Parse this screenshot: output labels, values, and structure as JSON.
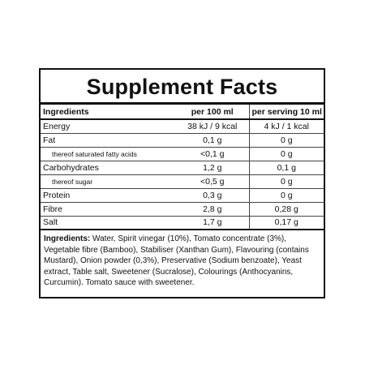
{
  "title": "Supplement Facts",
  "table": {
    "headers": [
      "Ingredients",
      "per 100 ml",
      "per serving 10 ml"
    ],
    "rows": [
      {
        "name": "Energy",
        "per100": "38 kJ / 9 kcal",
        "perServing": "4 kJ / 1 kcal",
        "sub": false
      },
      {
        "name": "Fat",
        "per100": "0,1 g",
        "perServing": "0 g",
        "sub": false
      },
      {
        "name": "thereof saturated fatty acids",
        "per100": "<0,1 g",
        "perServing": "0 g",
        "sub": true
      },
      {
        "name": "Carbohydrates",
        "per100": "1,2 g",
        "perServing": "0,1 g",
        "sub": false
      },
      {
        "name": "thereof sugar",
        "per100": "<0,5 g",
        "perServing": "0 g",
        "sub": true
      },
      {
        "name": "Protein",
        "per100": "0,3 g",
        "perServing": "0 g",
        "sub": false
      },
      {
        "name": "Fibre",
        "per100": "2,8 g",
        "perServing": "0,28 g",
        "sub": false
      },
      {
        "name": "Salt",
        "per100": "1,7 g",
        "perServing": "0,17 g",
        "sub": false
      }
    ]
  },
  "ingredients": {
    "label": "Ingredients:",
    "text": "Water, Spirit vinegar (10%), Tomato concentrate (3%), Vegetable fibre (Bamboo), Stabiliser (Xanthan Gum), Flavouring (contains Mustard), Onion powder (0,3%), Preservative (Sodium benzoate), Yeast extract, Table salt, Sweetener (Sucralose), Colourings (Anthocyanins, Curcumin). Tomato sauce with sweetener."
  }
}
